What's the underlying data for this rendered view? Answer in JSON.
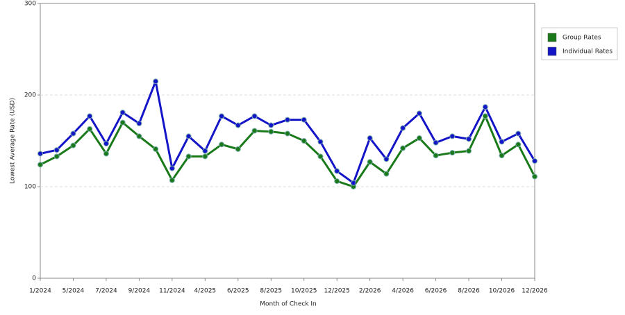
{
  "chart_data": {
    "type": "line",
    "x_label": "Month of Check In",
    "y_label": "Lowest Average Rate (USD)",
    "categories": [
      "1/2024",
      null,
      "5/2024",
      null,
      "7/2024",
      null,
      "9/2024",
      null,
      "11/2024",
      null,
      "4/2025",
      null,
      "6/2025",
      null,
      "8/2025",
      null,
      "10/2025",
      null,
      "12/2025",
      null,
      "2/2026",
      null,
      "4/2026",
      null,
      "6/2026",
      null,
      "8/2026",
      null,
      "10/2026",
      null,
      "12/2026"
    ],
    "series": [
      {
        "name": "Group Rates",
        "color": "#1a7a1a",
        "values": [
          124,
          133,
          145,
          163,
          136,
          170,
          155,
          141,
          107,
          133,
          133,
          146,
          141,
          161,
          160,
          158,
          150,
          133,
          106,
          100,
          127,
          114,
          142,
          153,
          134,
          137,
          139,
          177,
          134,
          146,
          111
        ]
      },
      {
        "name": "Individual Rates",
        "color": "#1515c8",
        "values": [
          136,
          140,
          158,
          177,
          147,
          181,
          169,
          215,
          120,
          155,
          139,
          177,
          167,
          177,
          167,
          173,
          173,
          149,
          117,
          104,
          153,
          130,
          164,
          180,
          148,
          155,
          152,
          187,
          149,
          158,
          128
        ]
      }
    ],
    "ylim": [
      0,
      300
    ],
    "yticks": [
      0,
      100,
      200,
      300
    ],
    "grid": true,
    "legend": "right"
  }
}
